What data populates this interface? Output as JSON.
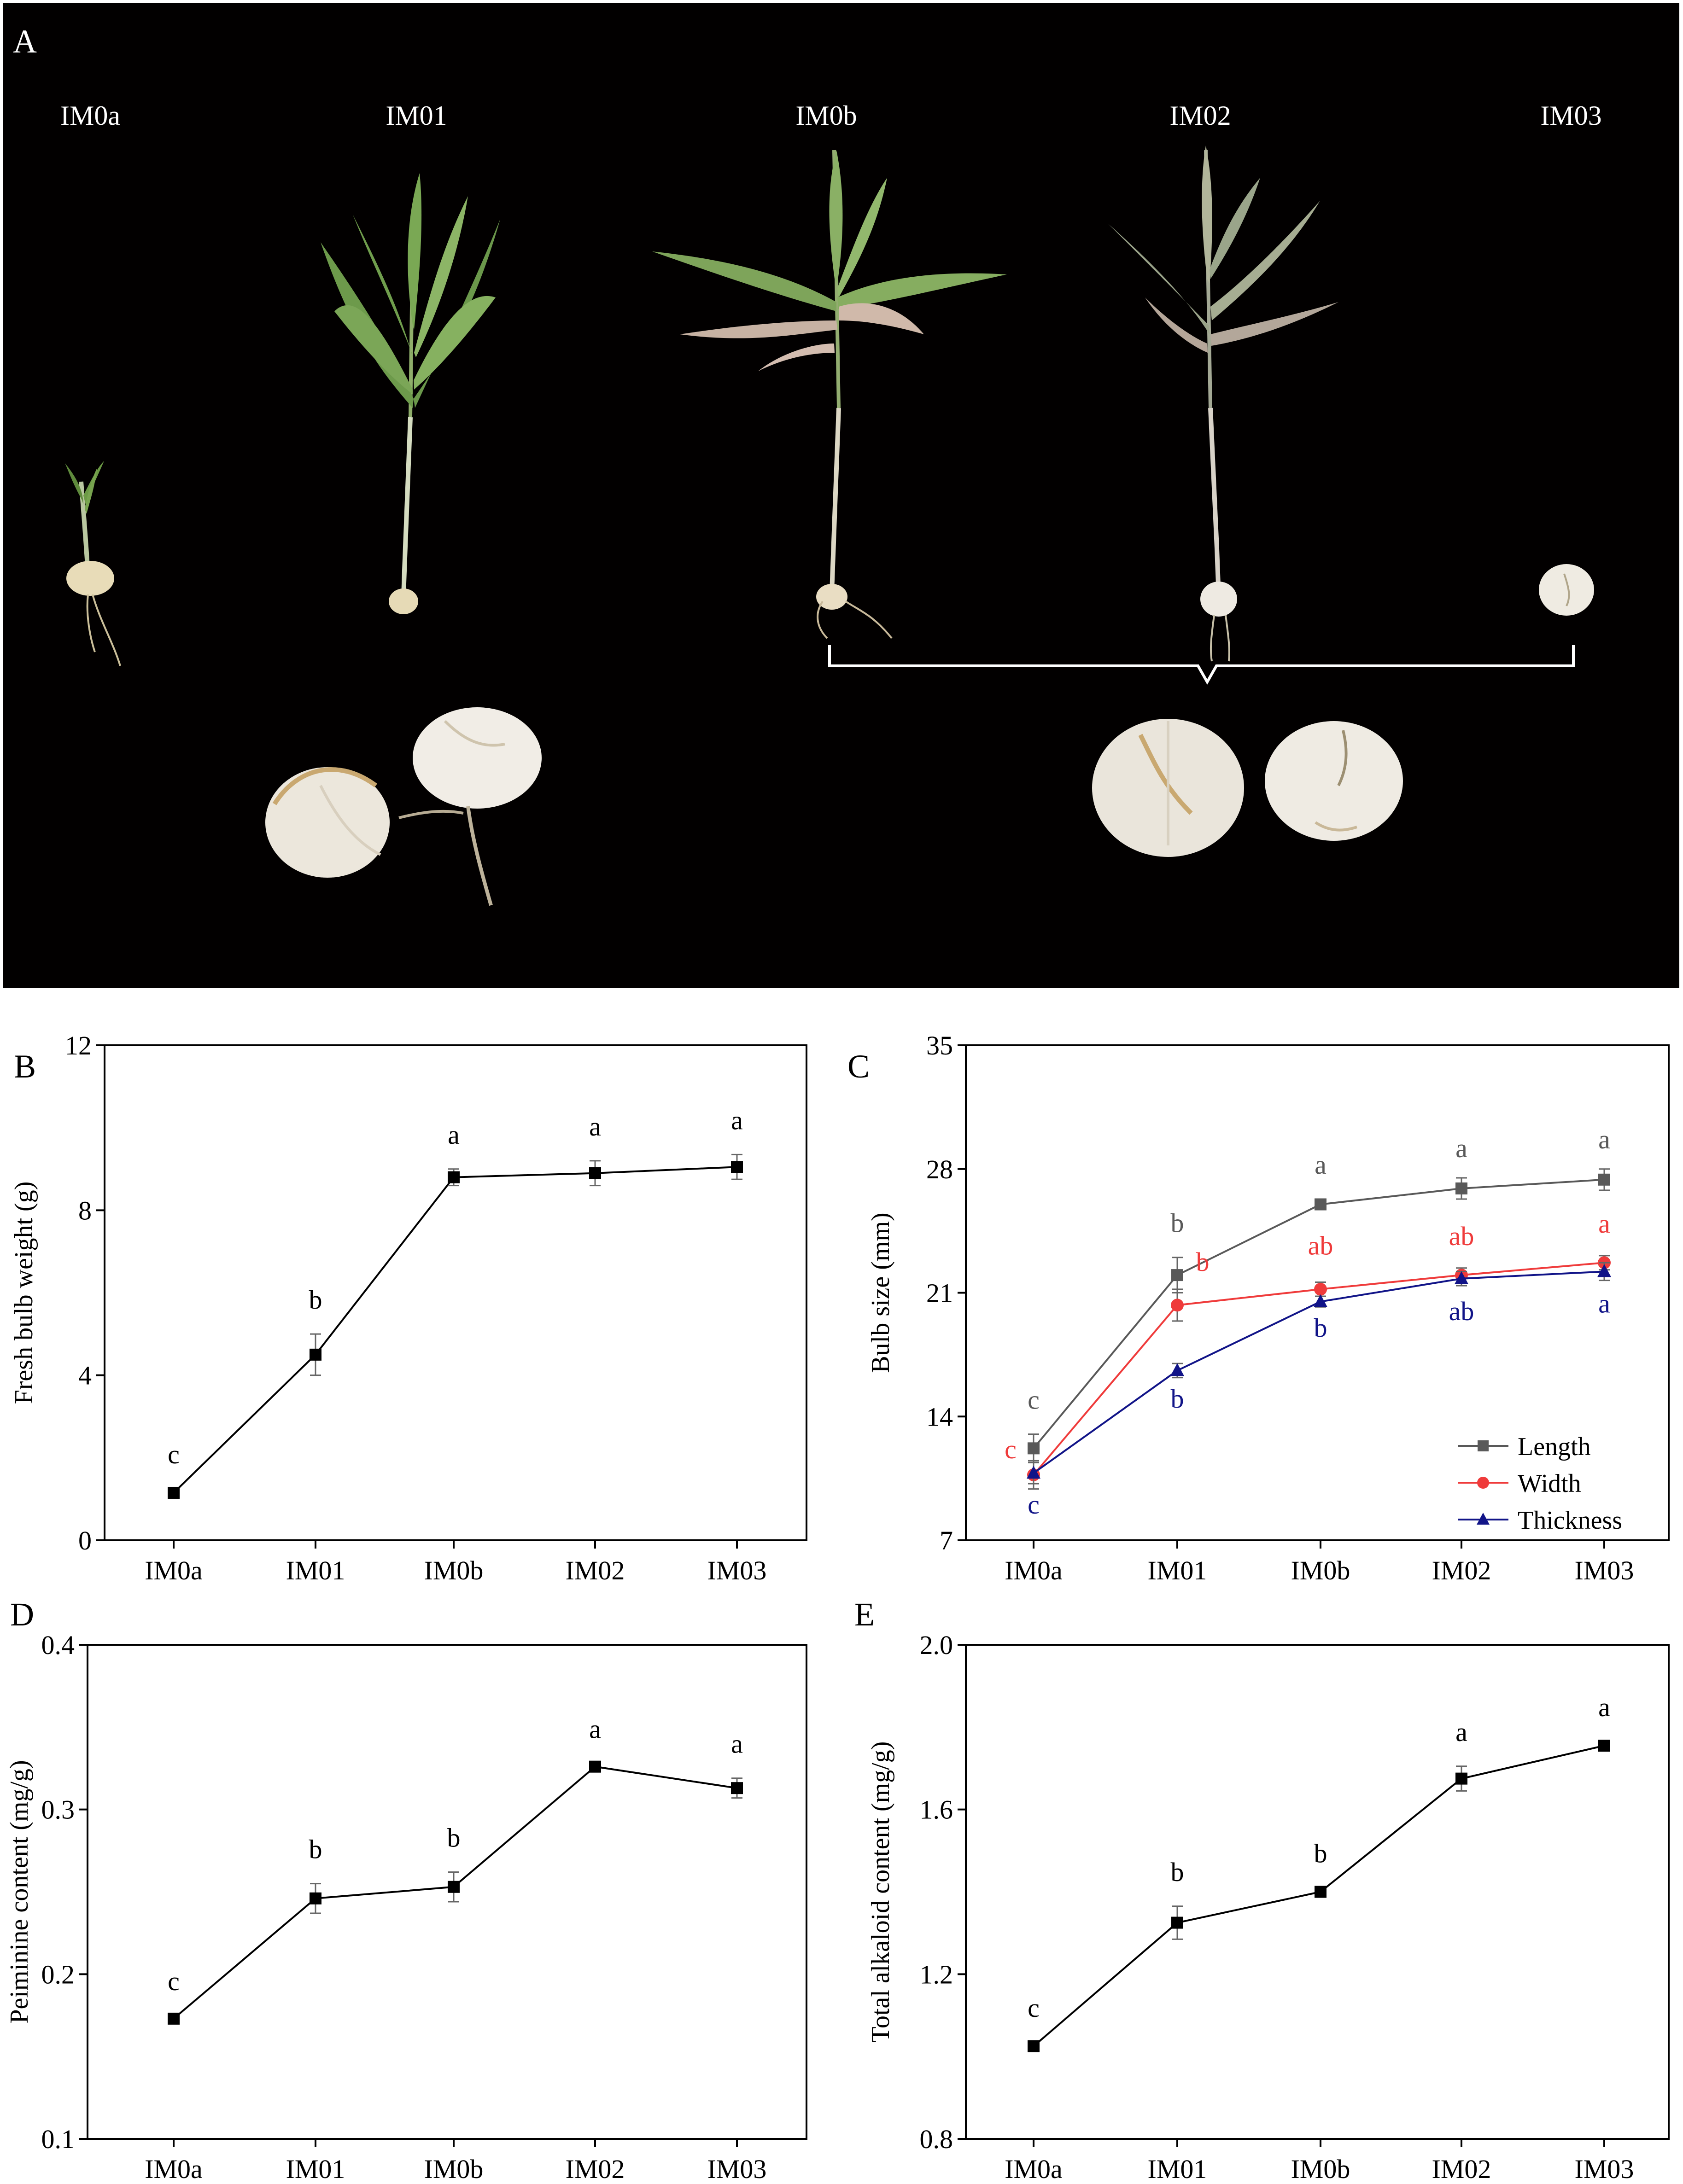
{
  "photo": {
    "label": "A",
    "specimens": [
      "IM0a",
      "IM01",
      "IM0b",
      "IM02",
      "IM03"
    ]
  },
  "chart_data": [
    {
      "id": "B",
      "panel_label": "B",
      "type": "line",
      "categories": [
        "IM0a",
        "IM01",
        "IM0b",
        "IM02",
        "IM03"
      ],
      "ylabel": "Fresh bulb weight (g)",
      "ylim": [
        0,
        12
      ],
      "yticks": [
        0,
        4,
        8,
        12
      ],
      "series": [
        {
          "name": "Fresh bulb weight",
          "color": "#000000",
          "marker": "square",
          "values": [
            1.15,
            4.5,
            8.8,
            8.9,
            9.05
          ],
          "errors": [
            0.1,
            0.5,
            0.2,
            0.3,
            0.3
          ],
          "letters": [
            "c",
            "b",
            "a",
            "a",
            "a"
          ]
        }
      ]
    },
    {
      "id": "C",
      "panel_label": "C",
      "type": "line",
      "categories": [
        "IM0a",
        "IM01",
        "IM0b",
        "IM02",
        "IM03"
      ],
      "ylabel": "Bulb size (mm)",
      "ylim": [
        7,
        35
      ],
      "yticks": [
        7,
        14,
        21,
        28,
        35
      ],
      "legend": "bottom-right",
      "series": [
        {
          "name": "Length",
          "color": "#595959",
          "marker": "square",
          "values": [
            12.2,
            22.0,
            26.0,
            26.9,
            27.4
          ],
          "errors": [
            0.8,
            1.0,
            0.3,
            0.6,
            0.6
          ],
          "letters": [
            "c",
            "b",
            "a",
            "a",
            "a"
          ]
        },
        {
          "name": "Width",
          "color": "#ef3b3b",
          "marker": "circle",
          "values": [
            10.7,
            20.3,
            21.2,
            22.0,
            22.7
          ],
          "errors": [
            0.8,
            0.9,
            0.4,
            0.4,
            0.4
          ],
          "letters": [
            "c",
            "b",
            "ab",
            "ab",
            "a"
          ]
        },
        {
          "name": "Thickness",
          "color": "#111488",
          "marker": "triangle",
          "values": [
            10.8,
            16.6,
            20.5,
            21.8,
            22.2
          ],
          "errors": [
            0.6,
            0.4,
            0.3,
            0.4,
            0.5
          ],
          "letters": [
            "c",
            "b",
            "b",
            "ab",
            "a"
          ]
        }
      ]
    },
    {
      "id": "D",
      "panel_label": "D",
      "type": "line",
      "categories": [
        "IM0a",
        "IM01",
        "IM0b",
        "IM02",
        "IM03"
      ],
      "ylabel": "Peiminine content (mg/g)",
      "ylim": [
        0.1,
        0.4
      ],
      "yticks": [
        0.1,
        0.2,
        0.3,
        0.4
      ],
      "series": [
        {
          "name": "Peiminine content",
          "color": "#000000",
          "marker": "square",
          "values": [
            0.173,
            0.246,
            0.253,
            0.326,
            0.313
          ],
          "errors": [
            0.002,
            0.009,
            0.009,
            0.002,
            0.006
          ],
          "letters": [
            "c",
            "b",
            "b",
            "a",
            "a"
          ]
        }
      ]
    },
    {
      "id": "E",
      "panel_label": "E",
      "type": "line",
      "categories": [
        "IM0a",
        "IM01",
        "IM0b",
        "IM02",
        "IM03"
      ],
      "ylabel": "Total alkaloid content (mg/g)",
      "ylim": [
        0.8,
        2.0
      ],
      "yticks": [
        0.8,
        1.2,
        1.6,
        2.0
      ],
      "series": [
        {
          "name": "Total alkaloid content",
          "color": "#000000",
          "marker": "square",
          "values": [
            1.025,
            1.325,
            1.4,
            1.675,
            1.755
          ],
          "errors": [
            0.01,
            0.04,
            0.01,
            0.03,
            0.01
          ],
          "letters": [
            "c",
            "b",
            "b",
            "a",
            "a"
          ]
        }
      ]
    }
  ]
}
